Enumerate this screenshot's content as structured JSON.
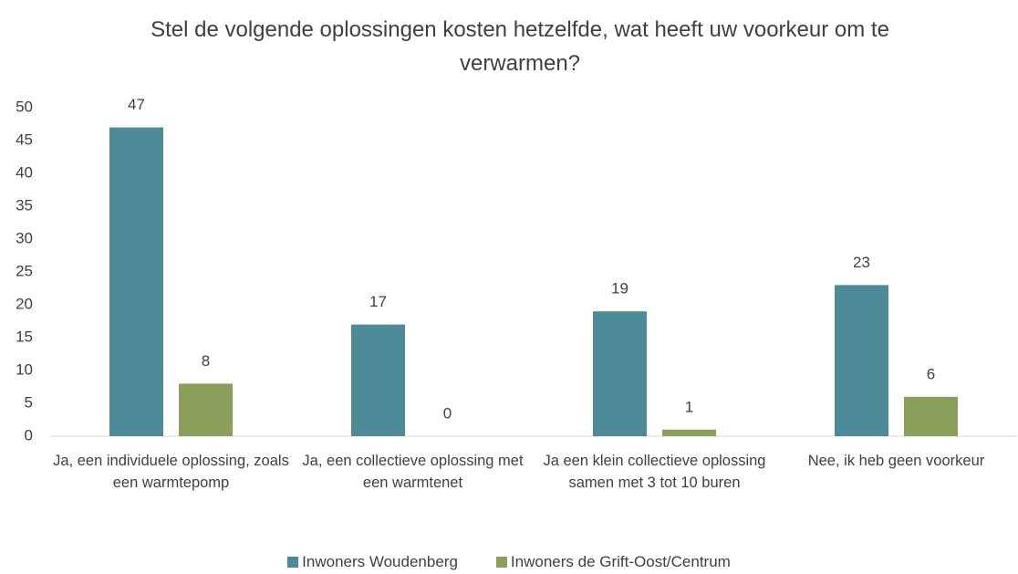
{
  "chart_data": {
    "type": "bar",
    "title": "Stel de volgende oplossingen kosten hetzelfde, wat heeft uw voorkeur om te verwarmen?",
    "categories": [
      "Ja, een individuele oplossing, zoals een warmtepomp",
      "Ja, een collectieve oplossing met een warmtenet",
      "Ja een klein collectieve oplossing samen met 3 tot 10 buren",
      "Nee, ik heb geen voorkeur"
    ],
    "series": [
      {
        "name": "Inwoners Woudenberg",
        "color": "#4e8b99",
        "values": [
          47,
          17,
          19,
          23
        ]
      },
      {
        "name": "Inwoners de Grift-Oost/Centrum",
        "color": "#8aa05a",
        "values": [
          8,
          0,
          1,
          6
        ]
      }
    ],
    "ylim": [
      0,
      50
    ],
    "yticks": [
      0,
      5,
      10,
      15,
      20,
      25,
      30,
      35,
      40,
      45,
      50
    ],
    "grid": false,
    "legend": "bottom"
  }
}
